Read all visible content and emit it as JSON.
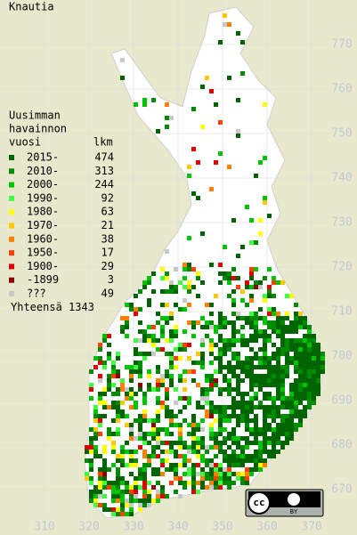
{
  "title": "Knautia",
  "legend": {
    "heading": [
      "Uusimman",
      "havainnon",
      "vuosi"
    ],
    "count_heading": "lkm",
    "items": [
      {
        "label": "2015-",
        "count": 474,
        "color": "#006400"
      },
      {
        "label": "2010-",
        "count": 313,
        "color": "#008c00"
      },
      {
        "label": "2000-",
        "count": 244,
        "color": "#00c400"
      },
      {
        "label": "1990-",
        "count": 92,
        "color": "#40ff40"
      },
      {
        "label": "1980-",
        "count": 63,
        "color": "#ffff00"
      },
      {
        "label": "1970-",
        "count": 21,
        "color": "#ffc800"
      },
      {
        "label": "1960-",
        "count": 38,
        "color": "#ff8000"
      },
      {
        "label": "1950-",
        "count": 17,
        "color": "#ff4000"
      },
      {
        "label": "1900-",
        "count": 29,
        "color": "#e00000"
      },
      {
        "label": "-1899",
        "count": 3,
        "color": "#900000"
      },
      {
        "label": "???",
        "count": 49,
        "color": "#c8c8c8"
      }
    ],
    "total": "Yhteensä 1343"
  },
  "map": {
    "xticks": [
      310,
      320,
      330,
      340,
      350,
      360,
      370
    ],
    "yticks": [
      670,
      680,
      690,
      700,
      710,
      720,
      730,
      740,
      750,
      760,
      770
    ]
  },
  "badge": {
    "license": "cc",
    "by": "BY"
  }
}
